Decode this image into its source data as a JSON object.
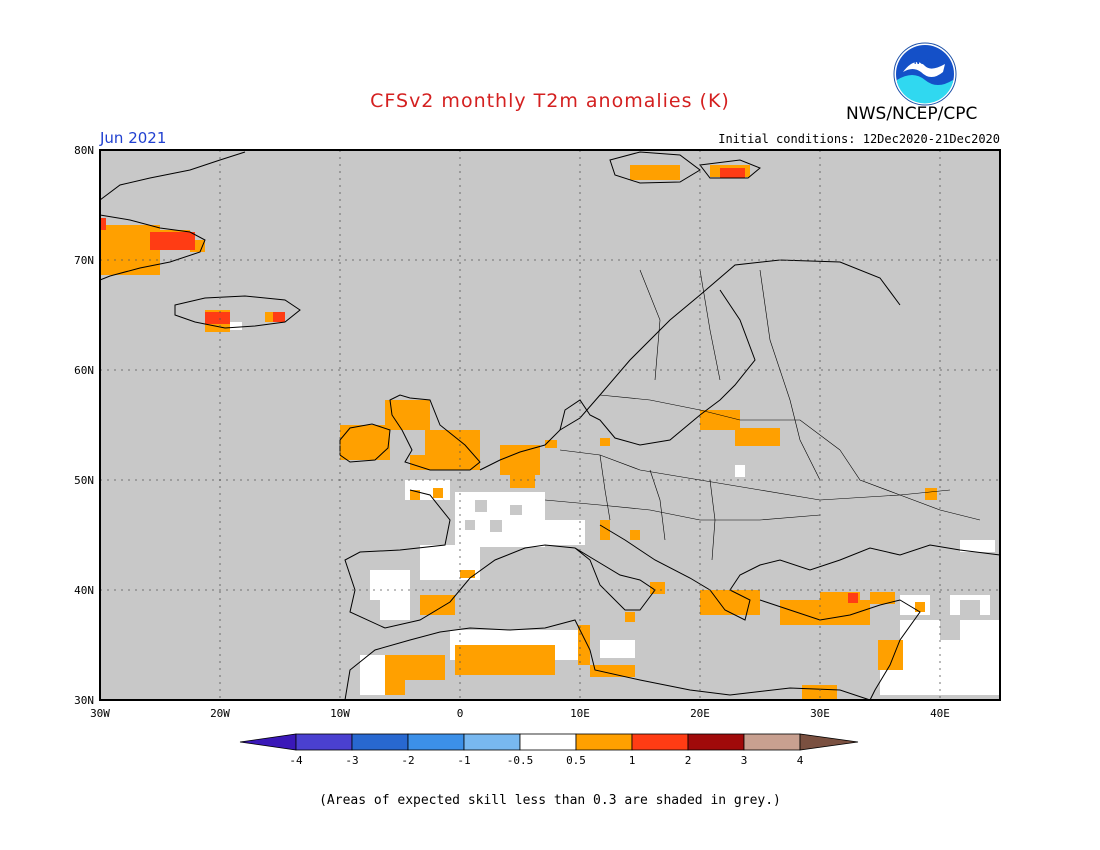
{
  "header": {
    "title": "CFSv2 monthly T2m anomalies (K)",
    "period": "Jun 2021",
    "initial_conditions": "Initial conditions: 12Dec2020-21Dec2020",
    "org": "NWS/NCEP/CPC",
    "logo_text": "NOAA"
  },
  "map": {
    "lat_labels": [
      "80N",
      "70N",
      "60N",
      "50N",
      "40N",
      "30N"
    ],
    "lon_labels": [
      "30W",
      "20W",
      "10W",
      "0",
      "10E",
      "20E",
      "30E",
      "40E"
    ],
    "background_color": "#c8c8c8"
  },
  "legend": {
    "labels": [
      "-4",
      "-3",
      "-2",
      "-1",
      "-0.5",
      "0.5",
      "1",
      "2",
      "3",
      "4"
    ],
    "colors": [
      "#3a18b8",
      "#4a40d0",
      "#2868d0",
      "#3c90e8",
      "#78b8f0",
      "#ffffff",
      "#ffa000",
      "#ff3c14",
      "#a00a0a",
      "#c8a090",
      "#7a5040"
    ]
  },
  "footnote": "(Areas of expected skill less than 0.3 are shaded in grey.)"
}
